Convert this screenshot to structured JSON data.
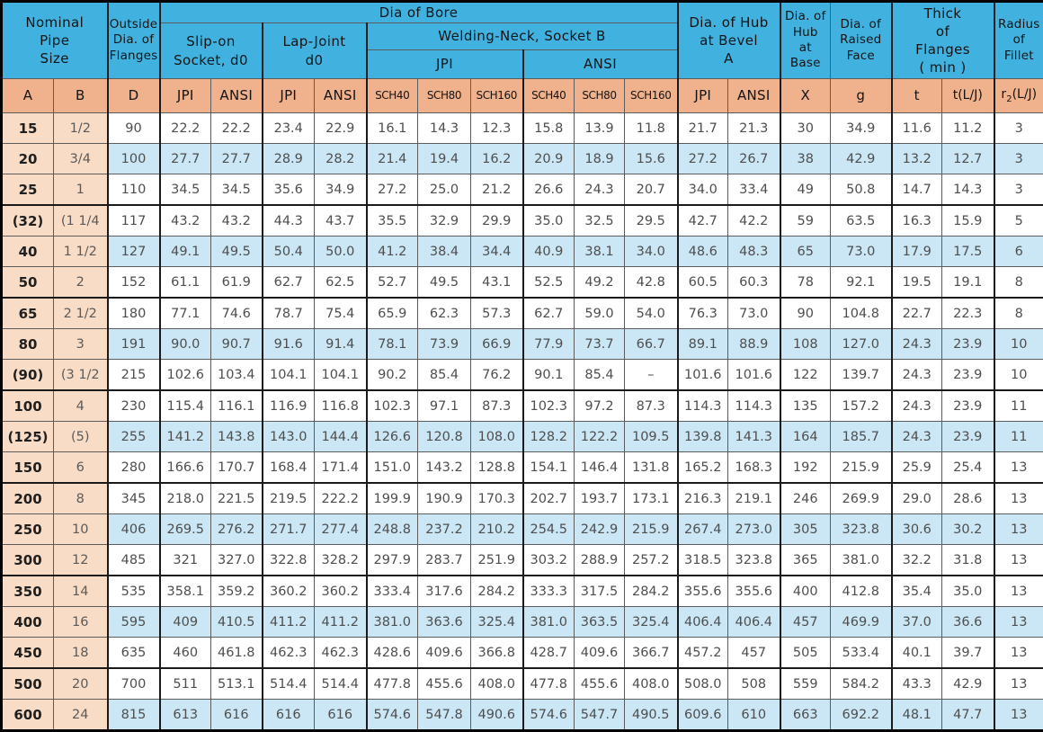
{
  "table": {
    "top_headers": {
      "nominal_pipe_size": "Nominal\nPipe\nSize",
      "outside_dia_flanges": "Outside\nDia. of\nFlanges",
      "dia_of_bore": "Dia of Bore",
      "slip_on_socket": "Slip-on\nSocket, d0",
      "lap_joint": "Lap-Joint\nd0",
      "welding_neck": "Welding-Neck, Socket B",
      "welding_neck_jpi": "JPI",
      "welding_neck_ansi": "ANSI",
      "hub_at_bevel": "Dia. of Hub\nat Bevel\nA",
      "hub_at_base": "Dia. of\nHub\nat\nBase",
      "raised_face": "Dia. of\nRaised\nFace",
      "thick_of_flanges": "Thick\nof\nFlanges\n( min )",
      "radius_of_fillet": "Radius\nof\nFillet"
    },
    "sub_headers": [
      "A",
      "B",
      "D",
      "JPI",
      "ANSI",
      "JPI",
      "ANSI",
      "SCH40",
      "SCH80",
      "SCH160",
      "SCH40",
      "SCH80",
      "SCH160",
      "JPI",
      "ANSI",
      "X",
      "g",
      "t",
      "t(L/J)"
    ],
    "r2_label": {
      "base": "r",
      "sub": "2",
      "rest": "(L/J)"
    },
    "rows": [
      [
        "15",
        "1/2",
        "90",
        "22.2",
        "22.2",
        "23.4",
        "22.9",
        "16.1",
        "14.3",
        "12.3",
        "15.8",
        "13.9",
        "11.8",
        "21.7",
        "21.3",
        "30",
        "34.9",
        "11.6",
        "11.2",
        "3"
      ],
      [
        "20",
        "3/4",
        "100",
        "27.7",
        "27.7",
        "28.9",
        "28.2",
        "21.4",
        "19.4",
        "16.2",
        "20.9",
        "18.9",
        "15.6",
        "27.2",
        "26.7",
        "38",
        "42.9",
        "13.2",
        "12.7",
        "3"
      ],
      [
        "25",
        "1",
        "110",
        "34.5",
        "34.5",
        "35.6",
        "34.9",
        "27.2",
        "25.0",
        "21.2",
        "26.6",
        "24.3",
        "20.7",
        "34.0",
        "33.4",
        "49",
        "50.8",
        "14.7",
        "14.3",
        "3"
      ],
      [
        "(32)",
        "(1 1/4",
        "117",
        "43.2",
        "43.2",
        "44.3",
        "43.7",
        "35.5",
        "32.9",
        "29.9",
        "35.0",
        "32.5",
        "29.5",
        "42.7",
        "42.2",
        "59",
        "63.5",
        "16.3",
        "15.9",
        "5"
      ],
      [
        "40",
        "1 1/2",
        "127",
        "49.1",
        "49.5",
        "50.4",
        "50.0",
        "41.2",
        "38.4",
        "34.4",
        "40.9",
        "38.1",
        "34.0",
        "48.6",
        "48.3",
        "65",
        "73.0",
        "17.9",
        "17.5",
        "6"
      ],
      [
        "50",
        "2",
        "152",
        "61.1",
        "61.9",
        "62.7",
        "62.5",
        "52.7",
        "49.5",
        "43.1",
        "52.5",
        "49.2",
        "42.8",
        "60.5",
        "60.3",
        "78",
        "92.1",
        "19.5",
        "19.1",
        "8"
      ],
      [
        "65",
        "2 1/2",
        "180",
        "77.1",
        "74.6",
        "78.7",
        "75.4",
        "65.9",
        "62.3",
        "57.3",
        "62.7",
        "59.0",
        "54.0",
        "76.3",
        "73.0",
        "90",
        "104.8",
        "22.7",
        "22.3",
        "8"
      ],
      [
        "80",
        "3",
        "191",
        "90.0",
        "90.7",
        "91.6",
        "91.4",
        "78.1",
        "73.9",
        "66.9",
        "77.9",
        "73.7",
        "66.7",
        "89.1",
        "88.9",
        "108",
        "127.0",
        "24.3",
        "23.9",
        "10"
      ],
      [
        "(90)",
        "(3 1/2",
        "215",
        "102.6",
        "103.4",
        "104.1",
        "104.1",
        "90.2",
        "85.4",
        "76.2",
        "90.1",
        "85.4",
        "–",
        "101.6",
        "101.6",
        "122",
        "139.7",
        "24.3",
        "23.9",
        "10"
      ],
      [
        "100",
        "4",
        "230",
        "115.4",
        "116.1",
        "116.9",
        "116.8",
        "102.3",
        "97.1",
        "87.3",
        "102.3",
        "97.2",
        "87.3",
        "114.3",
        "114.3",
        "135",
        "157.2",
        "24.3",
        "23.9",
        "11"
      ],
      [
        "(125)",
        "(5)",
        "255",
        "141.2",
        "143.8",
        "143.0",
        "144.4",
        "126.6",
        "120.8",
        "108.0",
        "128.2",
        "122.2",
        "109.5",
        "139.8",
        "141.3",
        "164",
        "185.7",
        "24.3",
        "23.9",
        "11"
      ],
      [
        "150",
        "6",
        "280",
        "166.6",
        "170.7",
        "168.4",
        "171.4",
        "151.0",
        "143.2",
        "128.8",
        "154.1",
        "146.4",
        "131.8",
        "165.2",
        "168.3",
        "192",
        "215.9",
        "25.9",
        "25.4",
        "13"
      ],
      [
        "200",
        "8",
        "345",
        "218.0",
        "221.5",
        "219.5",
        "222.2",
        "199.9",
        "190.9",
        "170.3",
        "202.7",
        "193.7",
        "173.1",
        "216.3",
        "219.1",
        "246",
        "269.9",
        "29.0",
        "28.6",
        "13"
      ],
      [
        "250",
        "10",
        "406",
        "269.5",
        "276.2",
        "271.7",
        "277.4",
        "248.8",
        "237.2",
        "210.2",
        "254.5",
        "242.9",
        "215.9",
        "267.4",
        "273.0",
        "305",
        "323.8",
        "30.6",
        "30.2",
        "13"
      ],
      [
        "300",
        "12",
        "485",
        "321",
        "327.0",
        "322.8",
        "328.2",
        "297.9",
        "283.7",
        "251.9",
        "303.2",
        "288.9",
        "257.2",
        "318.5",
        "323.8",
        "365",
        "381.0",
        "32.2",
        "31.8",
        "13"
      ],
      [
        "350",
        "14",
        "535",
        "358.1",
        "359.2",
        "360.2",
        "360.2",
        "333.4",
        "317.6",
        "284.2",
        "333.3",
        "317.5",
        "284.2",
        "355.6",
        "355.6",
        "400",
        "412.8",
        "35.4",
        "35.0",
        "13"
      ],
      [
        "400",
        "16",
        "595",
        "409",
        "410.5",
        "411.2",
        "411.2",
        "381.0",
        "363.6",
        "325.4",
        "381.0",
        "363.5",
        "325.4",
        "406.4",
        "406.4",
        "457",
        "469.9",
        "37.0",
        "36.6",
        "13"
      ],
      [
        "450",
        "18",
        "635",
        "460",
        "461.8",
        "462.3",
        "462.3",
        "428.6",
        "409.6",
        "366.8",
        "428.7",
        "409.6",
        "366.7",
        "457.2",
        "457",
        "505",
        "533.4",
        "40.1",
        "39.7",
        "13"
      ],
      [
        "500",
        "20",
        "700",
        "511",
        "513.1",
        "514.4",
        "514.4",
        "477.8",
        "455.6",
        "408.0",
        "477.8",
        "455.6",
        "408.0",
        "508.0",
        "508",
        "559",
        "584.2",
        "43.3",
        "42.9",
        "13"
      ],
      [
        "600",
        "24",
        "815",
        "613",
        "616",
        "616",
        "616",
        "574.6",
        "547.8",
        "490.6",
        "574.6",
        "547.7",
        "490.5",
        "609.6",
        "610",
        "663",
        "692.2",
        "48.1",
        "47.7",
        "13"
      ]
    ]
  }
}
